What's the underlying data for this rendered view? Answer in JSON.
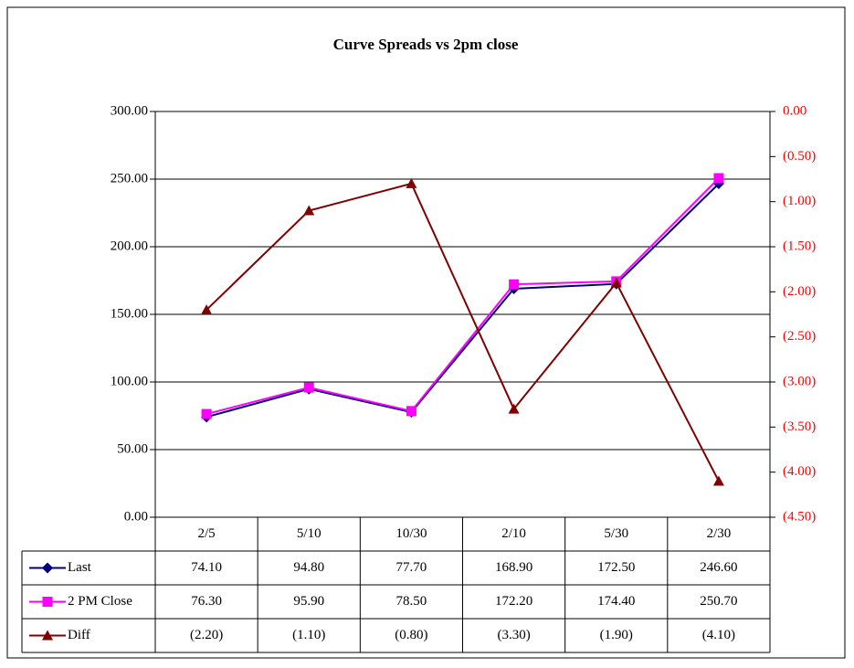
{
  "chart_data": {
    "type": "line",
    "title": "Curve Spreads vs 2pm close",
    "categories": [
      "2/5",
      "5/10",
      "10/30",
      "2/10",
      "5/30",
      "2/30"
    ],
    "series": [
      {
        "name": "Last",
        "color": "#000080",
        "marker": "diamond",
        "values": [
          74.1,
          94.8,
          77.7,
          168.9,
          172.5,
          246.6
        ],
        "value_labels": [
          "74.10",
          "94.80",
          "77.70",
          "168.90",
          "172.50",
          "246.60"
        ]
      },
      {
        "name": "2 PM Close",
        "color": "#ff00ff",
        "marker": "square",
        "values": [
          76.3,
          95.9,
          78.5,
          172.2,
          174.4,
          250.7
        ],
        "value_labels": [
          "76.30",
          "95.90",
          "78.50",
          "172.20",
          "174.40",
          "250.70"
        ]
      },
      {
        "name": "Diff",
        "color": "#800000",
        "marker": "triangle",
        "axis": "y2",
        "values": [
          -2.2,
          -1.1,
          -0.8,
          -3.3,
          -1.9,
          -4.1
        ],
        "value_labels": [
          "(2.20)",
          "(1.10)",
          "(0.80)",
          "(3.30)",
          "(1.90)",
          "(4.10)"
        ]
      }
    ],
    "ylim": [
      0,
      300
    ],
    "yticks": [
      {
        "value": 0,
        "label": "0.00"
      },
      {
        "value": 50,
        "label": "50.00"
      },
      {
        "value": 100,
        "label": "100.00"
      },
      {
        "value": 150,
        "label": "150.00"
      },
      {
        "value": 200,
        "label": "200.00"
      },
      {
        "value": 250,
        "label": "250.00"
      },
      {
        "value": 300,
        "label": "300.00"
      }
    ],
    "y2lim": [
      -4.5,
      0
    ],
    "y2ticks": [
      {
        "value": 0,
        "label": "0.00"
      },
      {
        "value": -0.5,
        "label": "(0.50)"
      },
      {
        "value": -1,
        "label": "(1.00)"
      },
      {
        "value": -1.5,
        "label": "(1.50)"
      },
      {
        "value": -2,
        "label": "(2.00)"
      },
      {
        "value": -2.5,
        "label": "(2.50)"
      },
      {
        "value": -3,
        "label": "(3.00)"
      },
      {
        "value": -3.5,
        "label": "(3.50)"
      },
      {
        "value": -4,
        "label": "(4.00)"
      },
      {
        "value": -4.5,
        "label": "(4.50)"
      }
    ],
    "y2tick_color": "#ff0000",
    "grid": true,
    "data_table": true
  }
}
